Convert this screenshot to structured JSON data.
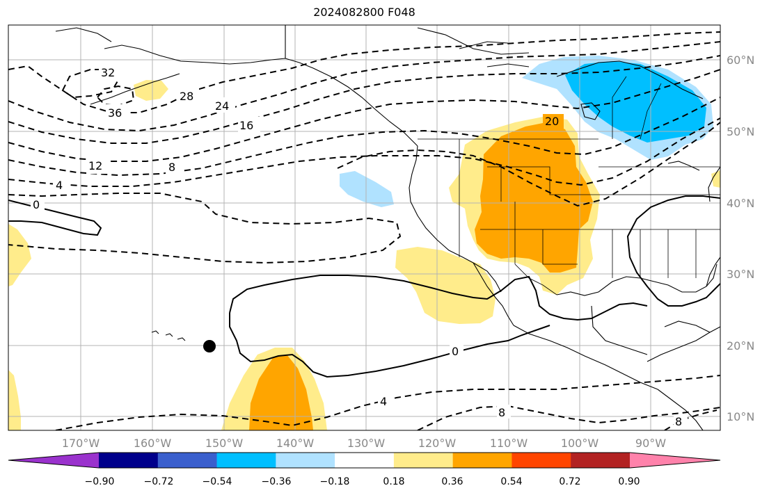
{
  "title": "2024082800 F048",
  "lat_labels": [
    "60°N",
    "50°N",
    "40°N",
    "30°N",
    "20°N",
    "10°N"
  ],
  "lon_labels": [
    "170°W",
    "160°W",
    "150°W",
    "140°W",
    "130°W",
    "120°W",
    "110°W",
    "100°W",
    "90°W"
  ],
  "contour_labels": [
    "32",
    "36",
    "28",
    "24",
    "16",
    "12",
    "8",
    "4",
    "0",
    "20",
    "0",
    "4",
    "8",
    "8"
  ],
  "colorbar": {
    "tick_labels": [
      "−0.90",
      "−0.72",
      "−0.54",
      "−0.36",
      "−0.18",
      "0.18",
      "0.36",
      "0.54",
      "0.72",
      "0.90"
    ],
    "colors": [
      "#9a32cd",
      "#00008b",
      "#3a5fcd",
      "#00bfff",
      "#b0e2ff",
      "#ffffff",
      "#ffec8b",
      "#ffa500",
      "#ff4500",
      "#b22222",
      "#ff82ab"
    ]
  },
  "colors": {
    "pos_light": "#ffec8b",
    "pos_mid": "#ffa500",
    "neg_light": "#b0e2ff",
    "neg_mid": "#00bfff"
  }
}
